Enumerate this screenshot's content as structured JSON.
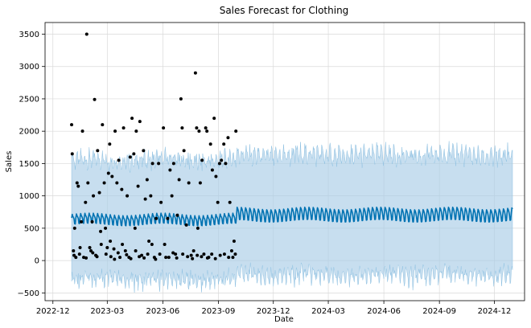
{
  "chart_data": {
    "type": "scatter",
    "title": "Sales Forecast for Clothing",
    "xlabel": "Date",
    "ylabel": "Sales",
    "xlim": [
      "2022-11-18",
      "2025-01-20"
    ],
    "ylim": [
      -620,
      3680
    ],
    "grid": true,
    "x_ticks": [
      {
        "date": "2022-12-01",
        "label": "2022-12"
      },
      {
        "date": "2023-03-01",
        "label": "2023-03"
      },
      {
        "date": "2023-06-01",
        "label": "2023-06"
      },
      {
        "date": "2023-09-01",
        "label": "2023-09"
      },
      {
        "date": "2023-12-01",
        "label": "2023-12"
      },
      {
        "date": "2024-03-01",
        "label": "2024-03"
      },
      {
        "date": "2024-06-01",
        "label": "2024-06"
      },
      {
        "date": "2024-09-01",
        "label": "2024-09"
      },
      {
        "date": "2024-12-01",
        "label": "2024-12"
      }
    ],
    "y_ticks": [
      -500,
      0,
      500,
      1000,
      1500,
      2000,
      2500,
      3000,
      3500
    ],
    "series": [
      {
        "kind": "observed",
        "color": "#000000",
        "points": [
          [
            "2023-01-01",
            2100
          ],
          [
            "2023-01-02",
            1650
          ],
          [
            "2023-01-04",
            150
          ],
          [
            "2023-01-06",
            500
          ],
          [
            "2023-01-08",
            50
          ],
          [
            "2023-01-10",
            1200
          ],
          [
            "2023-01-12",
            1150
          ],
          [
            "2023-01-14",
            100
          ],
          [
            "2023-01-17",
            600
          ],
          [
            "2023-01-19",
            2000
          ],
          [
            "2023-01-21",
            50
          ],
          [
            "2023-01-24",
            900
          ],
          [
            "2023-01-26",
            3500
          ],
          [
            "2023-01-28",
            1200
          ],
          [
            "2023-01-31",
            200
          ],
          [
            "2023-02-02",
            150
          ],
          [
            "2023-02-04",
            600
          ],
          [
            "2023-02-06",
            1000
          ],
          [
            "2023-02-08",
            2490
          ],
          [
            "2023-02-10",
            80
          ],
          [
            "2023-02-13",
            1700
          ],
          [
            "2023-02-16",
            1050
          ],
          [
            "2023-02-18",
            450
          ],
          [
            "2023-02-21",
            2100
          ],
          [
            "2023-02-24",
            1200
          ],
          [
            "2023-02-26",
            500
          ],
          [
            "2023-03-01",
            200
          ],
          [
            "2023-03-03",
            1350
          ],
          [
            "2023-03-05",
            1800
          ],
          [
            "2023-03-07",
            60
          ],
          [
            "2023-03-09",
            1300
          ],
          [
            "2023-03-12",
            180
          ],
          [
            "2023-03-14",
            2000
          ],
          [
            "2023-03-17",
            1200
          ],
          [
            "2023-03-20",
            1550
          ],
          [
            "2023-03-22",
            50
          ],
          [
            "2023-03-25",
            1100
          ],
          [
            "2023-03-28",
            2050
          ],
          [
            "2023-03-31",
            150
          ],
          [
            "2023-04-03",
            1000
          ],
          [
            "2023-04-06",
            50
          ],
          [
            "2023-04-08",
            1600
          ],
          [
            "2023-04-11",
            2200
          ],
          [
            "2023-04-14",
            1650
          ],
          [
            "2023-04-16",
            500
          ],
          [
            "2023-04-18",
            2000
          ],
          [
            "2023-04-21",
            1150
          ],
          [
            "2023-04-24",
            2150
          ],
          [
            "2023-04-27",
            80
          ],
          [
            "2023-04-30",
            1700
          ],
          [
            "2023-05-03",
            950
          ],
          [
            "2023-05-06",
            1250
          ],
          [
            "2023-05-09",
            300
          ],
          [
            "2023-05-12",
            1000
          ],
          [
            "2023-05-15",
            1500
          ],
          [
            "2023-05-18",
            50
          ],
          [
            "2023-05-21",
            650
          ],
          [
            "2023-05-25",
            1500
          ],
          [
            "2023-05-29",
            900
          ],
          [
            "2023-06-02",
            2050
          ],
          [
            "2023-06-06",
            50
          ],
          [
            "2023-06-09",
            650
          ],
          [
            "2023-06-13",
            1400
          ],
          [
            "2023-06-16",
            1000
          ],
          [
            "2023-06-19",
            1500
          ],
          [
            "2023-06-22",
            100
          ],
          [
            "2023-06-25",
            700
          ],
          [
            "2023-06-28",
            1250
          ],
          [
            "2023-07-01",
            2500
          ],
          [
            "2023-07-03",
            2050
          ],
          [
            "2023-07-06",
            1700
          ],
          [
            "2023-07-10",
            550
          ],
          [
            "2023-07-14",
            1200
          ],
          [
            "2023-07-18",
            80
          ],
          [
            "2023-07-22",
            150
          ],
          [
            "2023-07-25",
            2900
          ],
          [
            "2023-07-27",
            2050
          ],
          [
            "2023-07-29",
            500
          ],
          [
            "2023-07-31",
            2000
          ],
          [
            "2023-08-02",
            1200
          ],
          [
            "2023-08-05",
            1550
          ],
          [
            "2023-08-08",
            100
          ],
          [
            "2023-08-11",
            2050
          ],
          [
            "2023-08-13",
            2000
          ],
          [
            "2023-08-16",
            50
          ],
          [
            "2023-08-19",
            1800
          ],
          [
            "2023-08-22",
            1400
          ],
          [
            "2023-08-25",
            2200
          ],
          [
            "2023-08-28",
            1300
          ],
          [
            "2023-08-31",
            900
          ],
          [
            "2023-09-03",
            1500
          ],
          [
            "2023-09-06",
            1550
          ],
          [
            "2023-09-10",
            1800
          ],
          [
            "2023-09-13",
            1500
          ],
          [
            "2023-09-17",
            1900
          ],
          [
            "2023-09-20",
            900
          ],
          [
            "2023-09-23",
            150
          ],
          [
            "2023-09-27",
            300
          ],
          [
            "2023-09-30",
            2000
          ],
          [
            "2023-01-05",
            80
          ],
          [
            "2023-01-15",
            200
          ],
          [
            "2023-01-25",
            40
          ],
          [
            "2023-02-05",
            120
          ],
          [
            "2023-02-12",
            60
          ],
          [
            "2023-02-19",
            250
          ],
          [
            "2023-02-27",
            100
          ],
          [
            "2023-03-06",
            300
          ],
          [
            "2023-03-13",
            20
          ],
          [
            "2023-03-19",
            120
          ],
          [
            "2023-03-26",
            250
          ],
          [
            "2023-04-02",
            90
          ],
          [
            "2023-04-09",
            30
          ],
          [
            "2023-04-17",
            150
          ],
          [
            "2023-04-23",
            60
          ],
          [
            "2023-05-01",
            40
          ],
          [
            "2023-05-07",
            100
          ],
          [
            "2023-05-14",
            250
          ],
          [
            "2023-05-20",
            20
          ],
          [
            "2023-05-27",
            100
          ],
          [
            "2023-06-04",
            250
          ],
          [
            "2023-06-11",
            50
          ],
          [
            "2023-06-18",
            120
          ],
          [
            "2023-06-24",
            40
          ],
          [
            "2023-07-04",
            100
          ],
          [
            "2023-07-12",
            60
          ],
          [
            "2023-07-20",
            30
          ],
          [
            "2023-07-28",
            80
          ],
          [
            "2023-08-04",
            60
          ],
          [
            "2023-08-14",
            40
          ],
          [
            "2023-08-21",
            100
          ],
          [
            "2023-08-27",
            30
          ],
          [
            "2023-09-04",
            80
          ],
          [
            "2023-09-11",
            100
          ],
          [
            "2023-09-18",
            50
          ],
          [
            "2023-09-25",
            50
          ],
          [
            "2023-09-29",
            100
          ]
        ]
      },
      {
        "kind": "forecast",
        "color": "#0072b2",
        "band_color": "#a9cde6",
        "start": "2023-01-01",
        "end": "2024-12-31",
        "history_end": "2023-10-01"
      }
    ]
  }
}
